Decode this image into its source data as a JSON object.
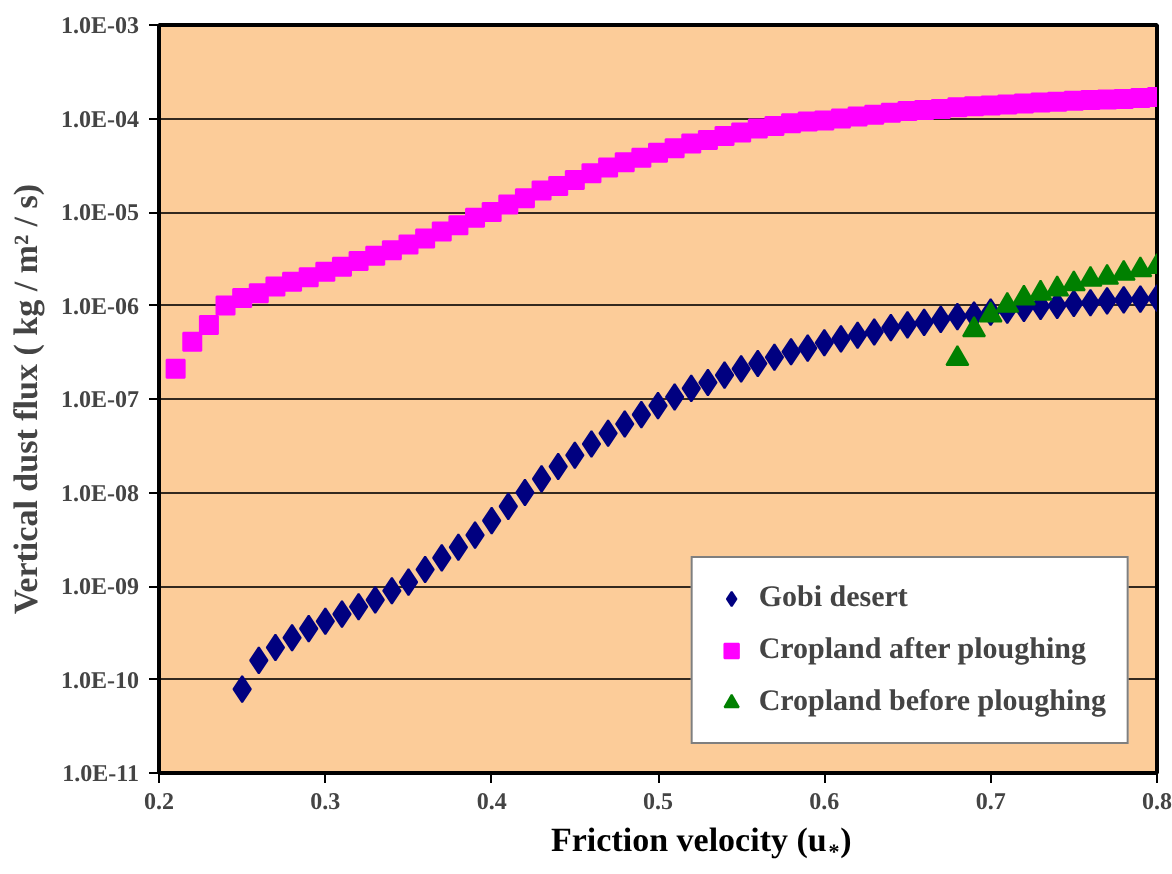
{
  "chart_data": {
    "type": "scatter",
    "xlabel": "Friction velocity (u$_{*}$)",
    "ylabel": "Vertical dust flux ( kg / m² / s)",
    "log": "y",
    "grid": "y",
    "legend": "bottom right",
    "xlim": [
      0.2,
      0.8
    ],
    "xticks": [
      0.2,
      0.3,
      0.4,
      0.5,
      0.6,
      0.7,
      0.8
    ],
    "ylim": [
      1e-11,
      0.001
    ],
    "yticks": [
      {
        "value": 1e-11,
        "label": "1.0E-11"
      },
      {
        "value": 1e-10,
        "label": "1.0E-10"
      },
      {
        "value": 1e-09,
        "label": "1.0E-09"
      },
      {
        "value": 1e-08,
        "label": "1.0E-08"
      },
      {
        "value": 1e-07,
        "label": "1.0E-07"
      },
      {
        "value": 1e-06,
        "label": "1.0E-06"
      },
      {
        "value": 1e-05,
        "label": "1.0E-05"
      },
      {
        "value": 0.0001,
        "label": "1.0E-04"
      },
      {
        "value": 0.001,
        "label": "1.0E-03"
      }
    ],
    "series": [
      {
        "name": "Gobi desert",
        "color": "#000080",
        "marker": "diamond",
        "x": [
          0.25,
          0.26,
          0.27,
          0.28,
          0.29,
          0.3,
          0.31,
          0.32,
          0.33,
          0.34,
          0.35,
          0.36,
          0.37,
          0.38,
          0.39,
          0.4,
          0.41,
          0.42,
          0.43,
          0.44,
          0.45,
          0.46,
          0.47,
          0.48,
          0.49,
          0.5,
          0.51,
          0.52,
          0.53,
          0.54,
          0.55,
          0.56,
          0.57,
          0.58,
          0.59,
          0.6,
          0.61,
          0.62,
          0.63,
          0.64,
          0.65,
          0.66,
          0.67,
          0.68,
          0.69,
          0.7,
          0.71,
          0.72,
          0.73,
          0.74,
          0.75,
          0.76,
          0.77,
          0.78,
          0.79,
          0.8
        ],
        "values": [
          7.9e-11,
          1.6e-10,
          2.2e-10,
          2.8e-10,
          3.5e-10,
          4.2e-10,
          5e-10,
          6e-10,
          7.1e-10,
          8.9e-10,
          1.1e-09,
          1.5e-09,
          2e-09,
          2.6e-09,
          3.5e-09,
          5e-09,
          7.1e-09,
          1e-08,
          1.4e-08,
          1.9e-08,
          2.5e-08,
          3.3e-08,
          4.3e-08,
          5.4e-08,
          6.8e-08,
          8.5e-08,
          1.05e-07,
          1.3e-07,
          1.5e-07,
          1.8e-07,
          2.1e-07,
          2.4e-07,
          2.8e-07,
          3.2e-07,
          3.5e-07,
          4e-07,
          4.4e-07,
          4.8e-07,
          5.2e-07,
          5.8e-07,
          6.2e-07,
          6.6e-07,
          7.1e-07,
          7.6e-07,
          7.9e-07,
          8.5e-07,
          8.9e-07,
          9.3e-07,
          9.8e-07,
          1e-06,
          1.05e-06,
          1.07e-06,
          1.12e-06,
          1.15e-06,
          1.17e-06,
          1.2e-06
        ]
      },
      {
        "name": "Cropland after ploughing",
        "color": "#ff00ff",
        "marker": "square",
        "x": [
          0.21,
          0.22,
          0.23,
          0.24,
          0.25,
          0.26,
          0.27,
          0.28,
          0.29,
          0.3,
          0.31,
          0.32,
          0.33,
          0.34,
          0.35,
          0.36,
          0.37,
          0.38,
          0.39,
          0.4,
          0.41,
          0.42,
          0.43,
          0.44,
          0.45,
          0.46,
          0.47,
          0.48,
          0.49,
          0.5,
          0.51,
          0.52,
          0.53,
          0.54,
          0.55,
          0.56,
          0.57,
          0.58,
          0.59,
          0.6,
          0.61,
          0.62,
          0.63,
          0.64,
          0.65,
          0.66,
          0.67,
          0.68,
          0.69,
          0.7,
          0.71,
          0.72,
          0.73,
          0.74,
          0.75,
          0.76,
          0.77,
          0.78,
          0.79,
          0.8
        ],
        "values": [
          2.1e-07,
          4.1e-07,
          6.2e-07,
          1e-06,
          1.2e-06,
          1.35e-06,
          1.6e-06,
          1.8e-06,
          2e-06,
          2.3e-06,
          2.6e-06,
          3e-06,
          3.4e-06,
          3.9e-06,
          4.5e-06,
          5.2e-06,
          6.2e-06,
          7.2e-06,
          8.7e-06,
          1e-05,
          1.2e-05,
          1.4e-05,
          1.7e-05,
          1.9e-05,
          2.2e-05,
          2.6e-05,
          3e-05,
          3.4e-05,
          3.8e-05,
          4.3e-05,
          4.8e-05,
          5.4e-05,
          5.9e-05,
          6.5e-05,
          7.1e-05,
          7.8e-05,
          8.3e-05,
          8.9e-05,
          9.3e-05,
          9.5e-05,
          0.0001,
          0.000105,
          0.00011,
          0.000115,
          0.00012,
          0.000123,
          0.000126,
          0.000132,
          0.000135,
          0.000138,
          0.000141,
          0.000145,
          0.000148,
          0.000151,
          0.000155,
          0.000158,
          0.00016,
          0.000162,
          0.000166,
          0.00017
        ]
      },
      {
        "name": "Cropland before ploughing",
        "color": "#008000",
        "marker": "triangle",
        "x": [
          0.68,
          0.69,
          0.7,
          0.71,
          0.72,
          0.73,
          0.74,
          0.75,
          0.76,
          0.77,
          0.78,
          0.79,
          0.8
        ],
        "values": [
          2.7e-07,
          5.5e-07,
          7.9e-07,
          1e-06,
          1.2e-06,
          1.35e-06,
          1.5e-06,
          1.7e-06,
          1.9e-06,
          2e-06,
          2.2e-06,
          2.4e-06,
          2.6e-06
        ]
      }
    ]
  }
}
